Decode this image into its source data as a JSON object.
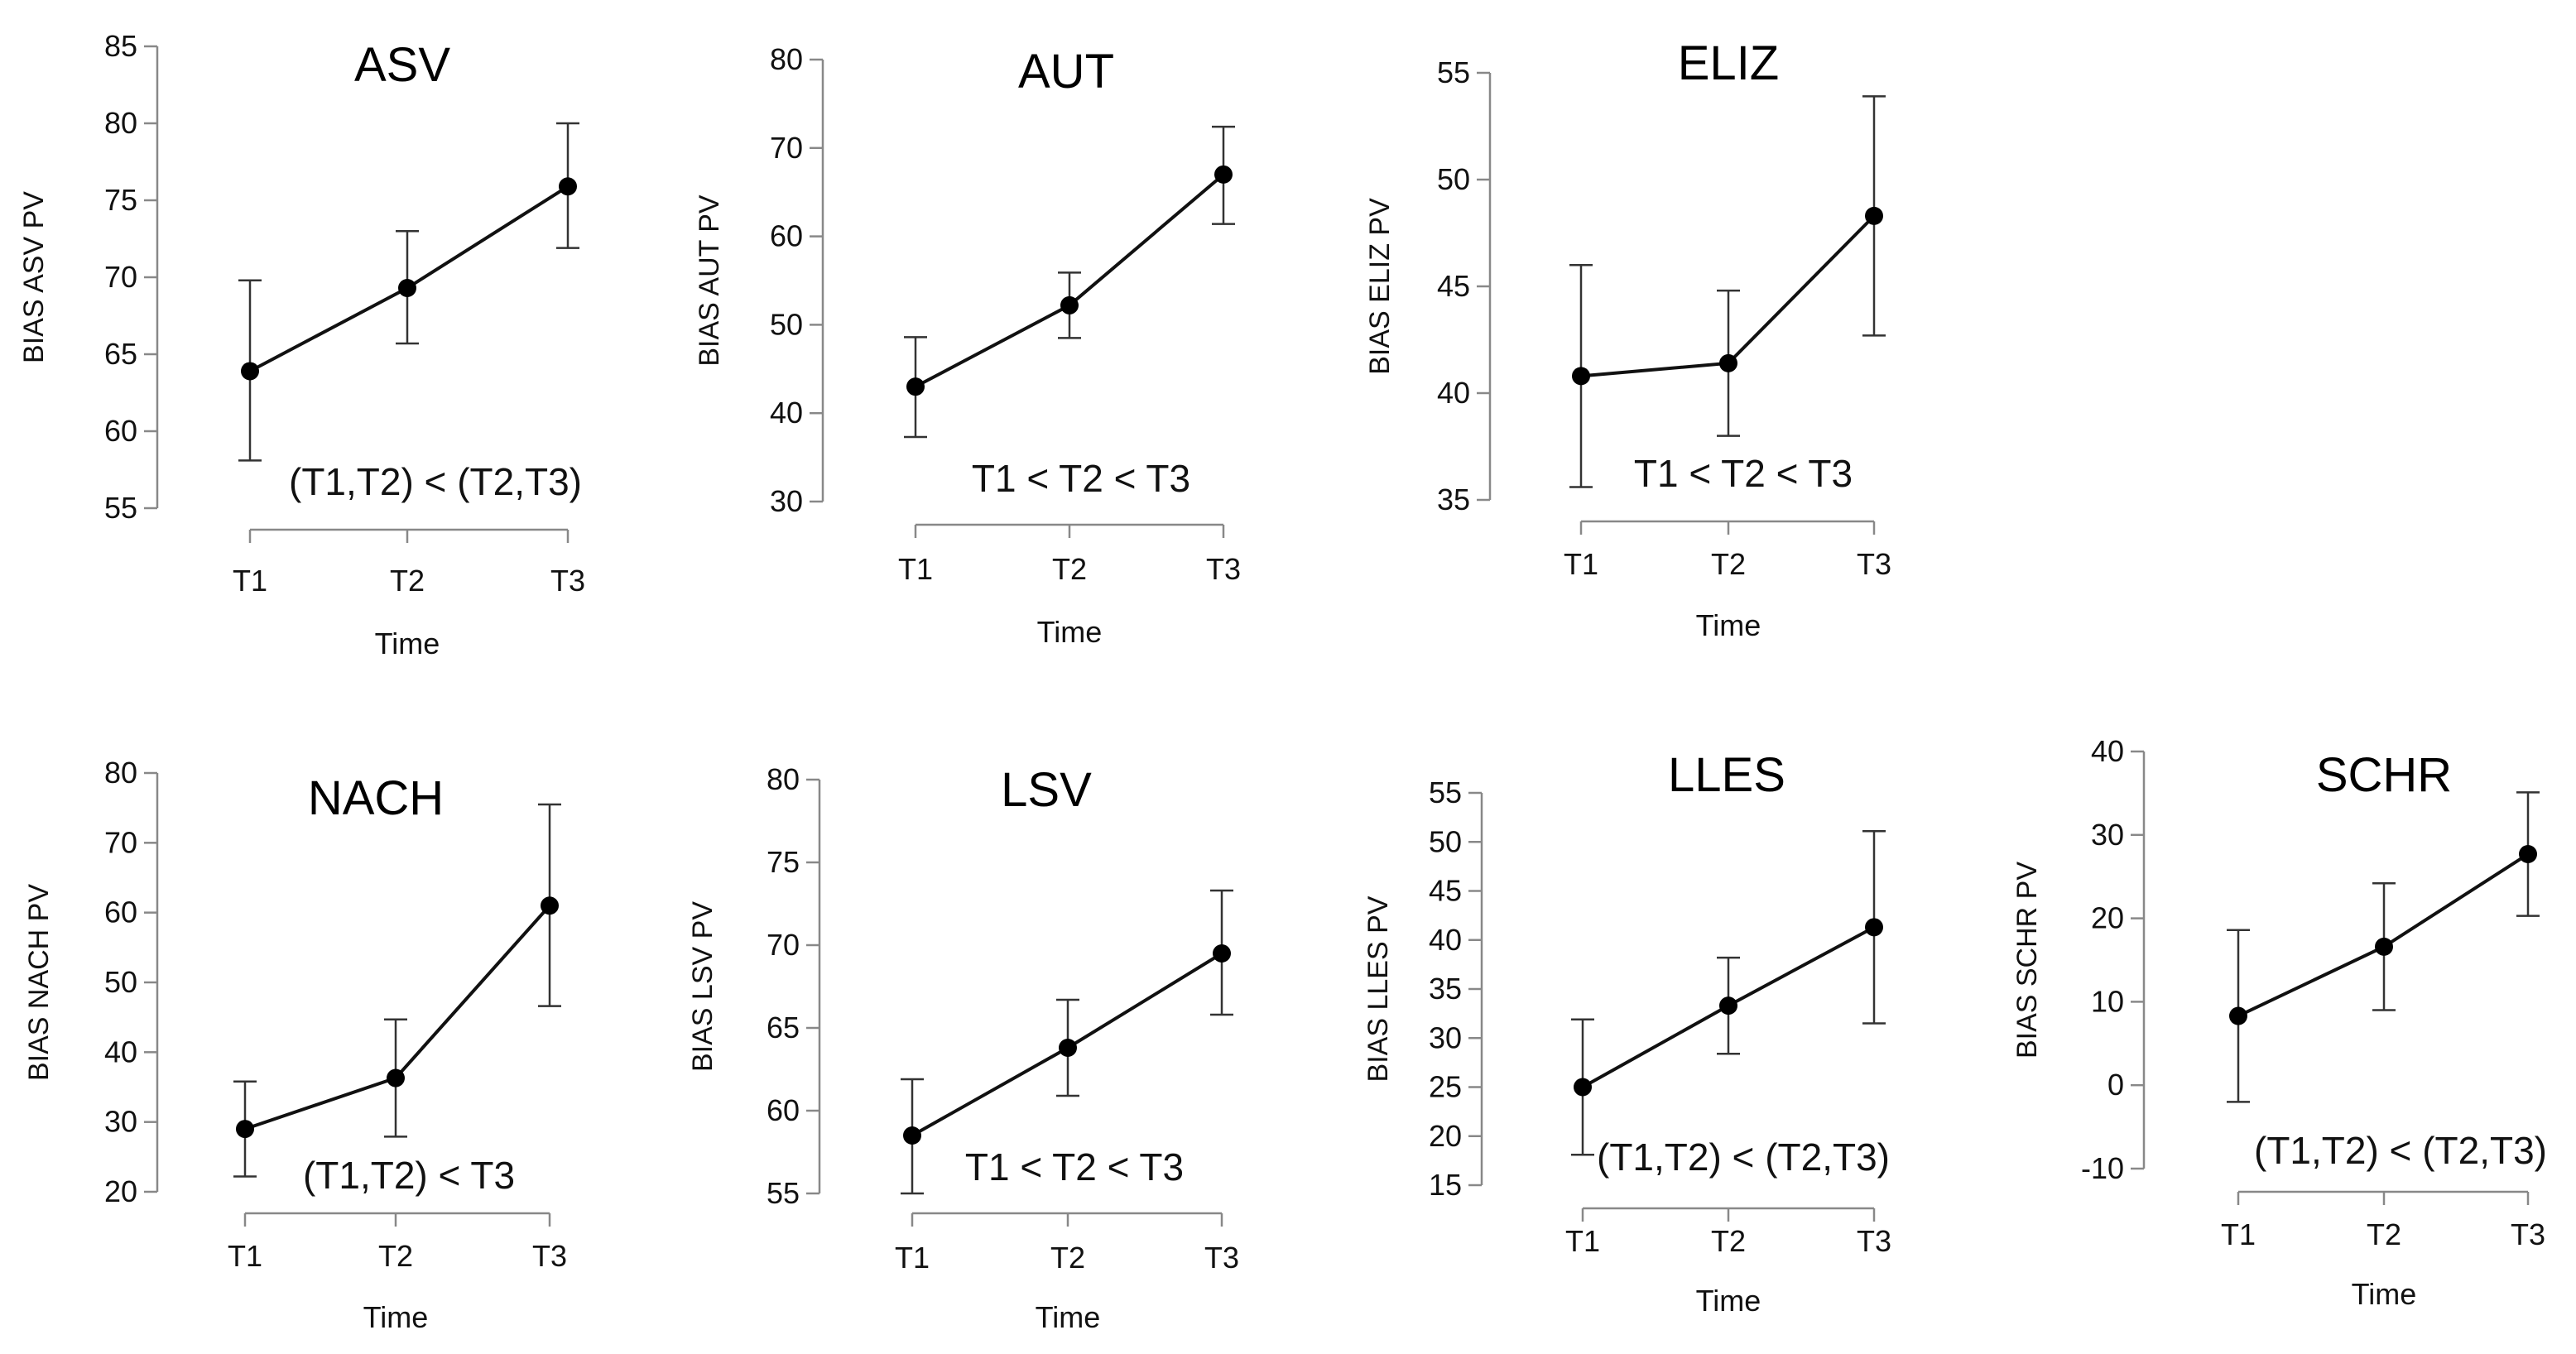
{
  "colors": {
    "line": "#111111",
    "point": "#000000",
    "axis": "#888888"
  },
  "chart_data": [
    {
      "type": "line",
      "title": "ASV",
      "xlabel": "Time",
      "ylabel": "BIAS ASV PV",
      "categories": [
        "T1",
        "T2",
        "T3"
      ],
      "yticks": [
        55,
        60,
        65,
        70,
        75,
        80,
        85
      ],
      "ylim": [
        55,
        85
      ],
      "values": [
        63.9,
        69.3,
        75.9
      ],
      "lower": [
        58.1,
        65.7,
        71.9
      ],
      "upper": [
        69.8,
        73.0,
        80.0
      ],
      "annotation": "(T1,T2) < (T2,T3)"
    },
    {
      "type": "line",
      "title": "AUT",
      "xlabel": "Time",
      "ylabel": "BIAS AUT PV",
      "categories": [
        "T1",
        "T2",
        "T3"
      ],
      "yticks": [
        30,
        40,
        50,
        60,
        70,
        80
      ],
      "ylim": [
        30,
        80
      ],
      "values": [
        43.0,
        52.2,
        67.0
      ],
      "lower": [
        37.3,
        48.5,
        61.4
      ],
      "upper": [
        48.6,
        55.9,
        72.4
      ],
      "annotation": "T1 < T2 < T3"
    },
    {
      "type": "line",
      "title": "ELIZ",
      "xlabel": "Time",
      "ylabel": "BIAS ELIZ PV",
      "categories": [
        "T1",
        "T2",
        "T3"
      ],
      "yticks": [
        35,
        40,
        45,
        50,
        55
      ],
      "ylim": [
        35,
        55
      ],
      "values": [
        40.8,
        41.4,
        48.3
      ],
      "lower": [
        35.6,
        38.0,
        42.7
      ],
      "upper": [
        46.0,
        44.8,
        53.9
      ],
      "annotation": "T1 < T2 < T3"
    },
    {
      "type": "line",
      "title": "NACH",
      "xlabel": "Time",
      "ylabel": "BIAS NACH PV",
      "categories": [
        "T1",
        "T2",
        "T3"
      ],
      "yticks": [
        20,
        30,
        40,
        50,
        60,
        70,
        80
      ],
      "ylim": [
        20,
        80
      ],
      "values": [
        29.0,
        36.3,
        61.0
      ],
      "lower": [
        22.2,
        27.9,
        46.6
      ],
      "upper": [
        35.8,
        44.7,
        75.5
      ],
      "annotation": "(T1,T2) < T3"
    },
    {
      "type": "line",
      "title": "LSV",
      "xlabel": "Time",
      "ylabel": "BIAS LSV PV",
      "categories": [
        "T1",
        "T2",
        "T3"
      ],
      "yticks": [
        55,
        60,
        65,
        70,
        75,
        80
      ],
      "ylim": [
        55,
        80
      ],
      "values": [
        58.5,
        63.8,
        69.5
      ],
      "lower": [
        55.0,
        60.9,
        65.8
      ],
      "upper": [
        61.9,
        66.7,
        73.3
      ],
      "annotation": "T1 < T2 < T3"
    },
    {
      "type": "line",
      "title": "LLES",
      "xlabel": "Time",
      "ylabel": "BIAS LLES PV",
      "categories": [
        "T1",
        "T2",
        "T3"
      ],
      "yticks": [
        15,
        20,
        25,
        30,
        35,
        40,
        45,
        50,
        55
      ],
      "ylim": [
        15,
        55
      ],
      "values": [
        25.0,
        33.3,
        41.3
      ],
      "lower": [
        18.1,
        28.4,
        31.5
      ],
      "upper": [
        31.9,
        38.2,
        51.1
      ],
      "annotation": "(T1,T2) < (T2,T3)"
    },
    {
      "type": "line",
      "title": "SCHR",
      "xlabel": "Time",
      "ylabel": "BIAS SCHR PV",
      "categories": [
        "T1",
        "T2",
        "T3"
      ],
      "yticks": [
        -10,
        0,
        10,
        20,
        30,
        40
      ],
      "ylim": [
        -10,
        40
      ],
      "values": [
        8.3,
        16.6,
        27.7
      ],
      "lower": [
        -2.0,
        9.0,
        20.3
      ],
      "upper": [
        18.6,
        24.2,
        35.1
      ],
      "annotation": "(T1,T2) < (T2,T3)"
    }
  ]
}
